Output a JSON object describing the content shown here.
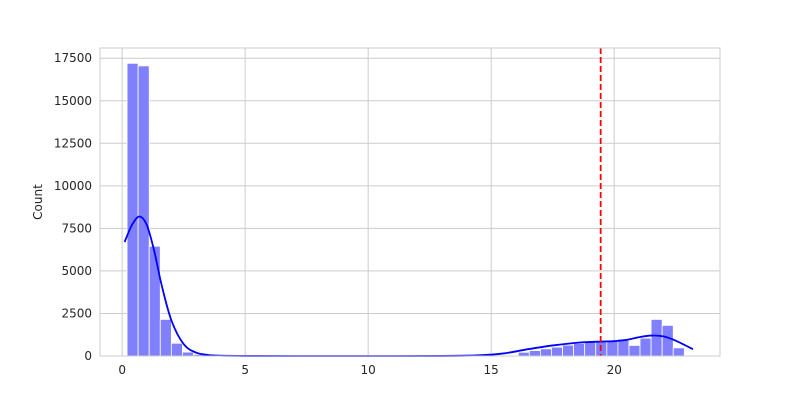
{
  "chart_data": {
    "type": "bar",
    "ylabel": "Count",
    "xlabel": "",
    "xlim": [
      -0.9,
      24.3
    ],
    "ylim": [
      0,
      18100
    ],
    "grid": true,
    "x_ticks": [
      0,
      5,
      10,
      15,
      20
    ],
    "y_ticks": [
      0,
      2500,
      5000,
      7500,
      10000,
      12500,
      15000,
      17500
    ],
    "bin_width": 0.45,
    "bins": [
      {
        "x0": 0.2,
        "count": 17200
      },
      {
        "x0": 0.65,
        "count": 17050
      },
      {
        "x0": 1.1,
        "count": 6450
      },
      {
        "x0": 1.55,
        "count": 2150
      },
      {
        "x0": 2.0,
        "count": 750
      },
      {
        "x0": 2.45,
        "count": 230
      },
      {
        "x0": 2.9,
        "count": 90
      },
      {
        "x0": 3.35,
        "count": 30
      },
      {
        "x0": 16.1,
        "count": 220
      },
      {
        "x0": 16.55,
        "count": 320
      },
      {
        "x0": 17.0,
        "count": 420
      },
      {
        "x0": 17.45,
        "count": 520
      },
      {
        "x0": 17.9,
        "count": 640
      },
      {
        "x0": 18.35,
        "count": 730
      },
      {
        "x0": 18.8,
        "count": 820
      },
      {
        "x0": 19.25,
        "count": 870
      },
      {
        "x0": 19.7,
        "count": 860
      },
      {
        "x0": 20.15,
        "count": 1000
      },
      {
        "x0": 20.6,
        "count": 620
      },
      {
        "x0": 21.05,
        "count": 1050
      },
      {
        "x0": 21.5,
        "count": 2150
      },
      {
        "x0": 21.95,
        "count": 1800
      },
      {
        "x0": 22.4,
        "count": 480
      }
    ],
    "kde": {
      "x": [
        0.1,
        0.4,
        0.7,
        1.0,
        1.3,
        1.6,
        2.0,
        2.5,
        3.0,
        3.5,
        4.0,
        5.0,
        7.0,
        10.0,
        13.0,
        14.5,
        15.5,
        16.5,
        17.5,
        18.5,
        19.5,
        20.0,
        20.5,
        21.0,
        21.5,
        22.0,
        22.5,
        23.2
      ],
      "y": [
        6700,
        7700,
        8200,
        7700,
        6200,
        4200,
        2100,
        700,
        200,
        60,
        20,
        5,
        0,
        0,
        5,
        40,
        150,
        400,
        620,
        780,
        850,
        870,
        950,
        1100,
        1200,
        1150,
        900,
        400
      ]
    },
    "vline": {
      "x": 19.45,
      "color": "#ff0000",
      "style": "dashed"
    },
    "colors": {
      "bar": "#8080ff",
      "kde": "#0000ff",
      "grid": "#cccccc"
    }
  }
}
